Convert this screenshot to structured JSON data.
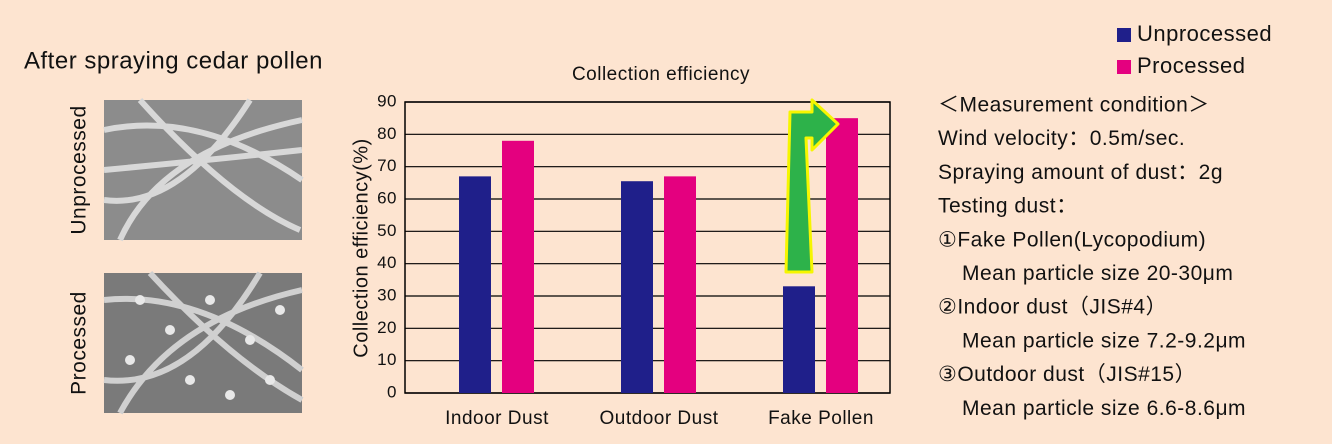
{
  "heading": "After spraying cedar pollen",
  "image_labels": [
    "Unprocessed",
    "Processed"
  ],
  "conditions": [
    "＜Measurement condition＞",
    "Wind velocity：0.5m/sec.",
    "Spraying amount of dust：2g",
    "Testing dust：",
    "①Fake Pollen(Lycopodium)",
    "Mean particle size 20-30μm",
    "②Indoor dust（JIS#4）",
    "Mean particle size 7.2-9.2μm",
    "③Outdoor dust（JIS#15）",
    "Mean particle size 6.6-8.6μm"
  ],
  "chart_data": {
    "type": "bar",
    "title": "Collection efficiency",
    "y_label": "Collection efficiency(%)",
    "categories": [
      "Indoor Dust",
      "Outdoor Dust",
      "Fake Pollen"
    ],
    "series": [
      {
        "name": "Unprocessed",
        "color": "#1f1f8a",
        "values": [
          67,
          65.5,
          33
        ]
      },
      {
        "name": "Processed",
        "color": "#e4007f",
        "values": [
          78,
          67,
          85
        ]
      }
    ],
    "ylim": [
      0,
      90
    ],
    "yticks": [
      0,
      10,
      20,
      30,
      40,
      50,
      60,
      70,
      80,
      90
    ],
    "grid": true,
    "legend": "top-right"
  }
}
